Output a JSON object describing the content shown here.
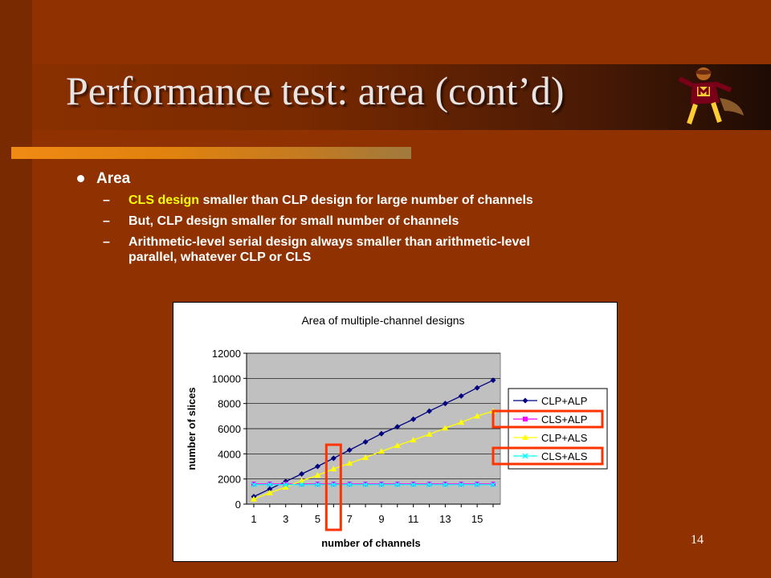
{
  "slide": {
    "title": "Performance test: area (cont’d)",
    "page_number": "14",
    "bullet": {
      "label": "Area",
      "subs": [
        {
          "highlight": "CLS design",
          "rest": " smaller than CLP design for large number of channels"
        },
        {
          "highlight": "",
          "rest": "But, CLP design smaller for small number of channels"
        },
        {
          "highlight": "",
          "rest": "Arithmetic-level serial design always smaller than arithmetic-level"
        },
        {
          "highlight": "",
          "rest": "parallel, whatever CLP or CLS"
        }
      ]
    },
    "colors": {
      "background": "#8f3100",
      "highlight_text": "#ffff00",
      "rule": "#f08a14",
      "annotation_box": "#ff3300"
    }
  },
  "chart_data": {
    "type": "line",
    "title": "Area of multiple-channel designs",
    "xlabel": "number of channels",
    "ylabel": "number of slices",
    "x": [
      1,
      2,
      3,
      4,
      5,
      6,
      7,
      8,
      9,
      10,
      11,
      12,
      13,
      14,
      15,
      16
    ],
    "x_tick_labels": [
      "1",
      "3",
      "5",
      "7",
      "9",
      "11",
      "13",
      "15"
    ],
    "y_ticks": [
      "0",
      "2000",
      "4000",
      "6000",
      "8000",
      "10000",
      "12000"
    ],
    "ylim": [
      0,
      12000
    ],
    "grid": true,
    "plot_background": "#c0c0c0",
    "legend_placement": "right",
    "series": [
      {
        "name": "CLP+ALP",
        "color": "#000080",
        "marker": "diamond",
        "values": [
          600,
          1200,
          1800,
          2400,
          3000,
          3650,
          4300,
          4950,
          5600,
          6150,
          6750,
          7400,
          8000,
          8600,
          9250,
          9850
        ]
      },
      {
        "name": "CLS+ALP",
        "color": "#ff00ff",
        "marker": "square",
        "values": [
          1600,
          1600,
          1600,
          1600,
          1600,
          1600,
          1600,
          1600,
          1600,
          1600,
          1600,
          1600,
          1600,
          1600,
          1600,
          1600
        ]
      },
      {
        "name": "CLP+ALS",
        "color": "#ffff00",
        "marker": "triangle",
        "values": [
          400,
          900,
          1350,
          1850,
          2300,
          2800,
          3250,
          3700,
          4200,
          4650,
          5100,
          5550,
          6050,
          6500,
          7000,
          7400
        ]
      },
      {
        "name": "CLS+ALS",
        "color": "#00ffff",
        "marker": "x",
        "values": [
          1550,
          1550,
          1550,
          1550,
          1550,
          1550,
          1550,
          1550,
          1550,
          1550,
          1550,
          1550,
          1550,
          1550,
          1550,
          1550
        ]
      }
    ],
    "annotations": [
      {
        "type": "highlight-box",
        "around": "x",
        "value": 6
      },
      {
        "type": "highlight-box",
        "around": "legend",
        "value": "CLS+ALP"
      },
      {
        "type": "highlight-box",
        "around": "legend",
        "value": "CLS+ALS"
      }
    ]
  }
}
